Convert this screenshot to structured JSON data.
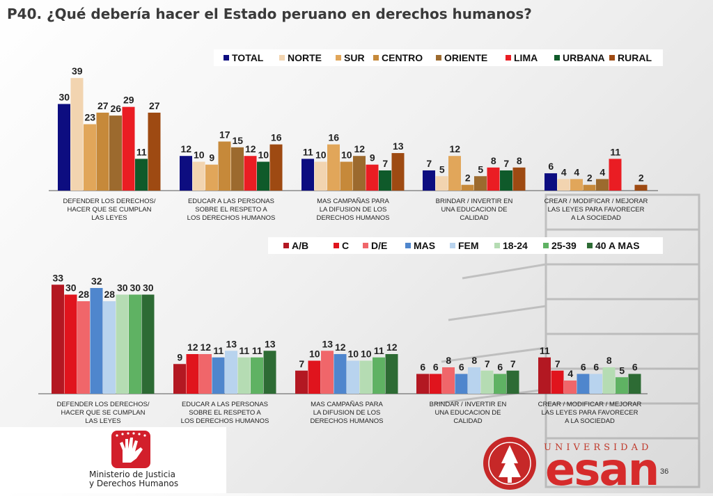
{
  "title": "P40. ¿Qué debería hacer el Estado peruano en derechos humanos?",
  "page_number": "36",
  "logos": {
    "ministerio": [
      "Ministerio de Justicia",
      "y Derechos Humanos"
    ],
    "university_word": "UNIVERSIDAD",
    "university_name": "esan"
  },
  "colors": {
    "TOTAL": "#0d0d80",
    "NORTE": "#f2d4b0",
    "SUR": "#e1a65a",
    "CENTRO": "#c6893a",
    "ORIENTE": "#9c6a2e",
    "LIMA": "#ea1d23",
    "URBANA": "#0f5a2a",
    "RURAL": "#9e4a12",
    "A/B": "#b31822",
    "C": "#e0141d",
    "D/E": "#f0666a",
    "MAS": "#4f86cd",
    "FEM": "#b8d3ee",
    "18-24": "#b5dcb3",
    "25-39": "#5fb263",
    "40 A MAS": "#2d6b34"
  },
  "chart_data": [
    {
      "type": "bar",
      "categories": [
        "DEFENDER LOS DERECHOS/|HACER QUE SE CUMPLAN|LAS LEYES",
        "EDUCAR A LAS PERSONAS|SOBRE EL RESPETO A|LOS DERECHOS HUMANOS",
        "MAS CAMPAÑAS PARA|LA DIFUSION DE LOS|DERECHOS HUMANOS",
        "BRINDAR / INVERTIR EN|UNA EDUCACION DE|CALIDAD",
        "CREAR / MODIFICAR / MEJORAR|LAS LEYES PARA FAVORECER|A LA SOCIEDAD"
      ],
      "series": [
        {
          "name": "TOTAL",
          "values": [
            30,
            12,
            11,
            7,
            6
          ]
        },
        {
          "name": "NORTE",
          "values": [
            39,
            10,
            10,
            5,
            4
          ]
        },
        {
          "name": "SUR",
          "values": [
            23,
            9,
            16,
            12,
            4
          ]
        },
        {
          "name": "CENTRO",
          "values": [
            27,
            17,
            10,
            2,
            2
          ]
        },
        {
          "name": "ORIENTE",
          "values": [
            26,
            15,
            12,
            5,
            4
          ]
        },
        {
          "name": "LIMA",
          "values": [
            29,
            12,
            9,
            8,
            11
          ]
        },
        {
          "name": "URBANA",
          "values": [
            11,
            10,
            7,
            7,
            null
          ]
        },
        {
          "name": "RURAL",
          "values": [
            27,
            16,
            13,
            8,
            2
          ]
        }
      ],
      "legend_position": "top-right",
      "grid": false
    },
    {
      "type": "bar",
      "categories": [
        "DEFENDER LOS DERECHOS/|HACER QUE SE CUMPLAN|LAS LEYES",
        "EDUCAR A LAS PERSONAS|SOBRE EL RESPETO A|LOS DERECHOS HUMANOS",
        "MAS CAMPAÑAS PARA|LA DIFUSION DE LOS|DERECHOS HUMANOS",
        "BRINDAR / INVERTIR EN|UNA EDUCACION DE|CALIDAD",
        "CREAR / MODIFICAR / MEJORAR|LAS LEYES PARA FAVORECER|A LA SOCIEDAD"
      ],
      "series": [
        {
          "name": "A/B",
          "values": [
            33,
            9,
            7,
            6,
            11
          ]
        },
        {
          "name": "C",
          "values": [
            30,
            12,
            10,
            6,
            7
          ]
        },
        {
          "name": "D/E",
          "values": [
            28,
            12,
            13,
            8,
            4
          ]
        },
        {
          "name": "MAS",
          "values": [
            32,
            11,
            12,
            6,
            6
          ]
        },
        {
          "name": "FEM",
          "values": [
            28,
            13,
            10,
            8,
            6
          ]
        },
        {
          "name": "18-24",
          "values": [
            30,
            11,
            10,
            7,
            8
          ]
        },
        {
          "name": "25-39",
          "values": [
            30,
            11,
            11,
            6,
            5
          ]
        },
        {
          "name": "40 A MAS",
          "values": [
            30,
            13,
            12,
            7,
            6
          ]
        }
      ],
      "legend_position": "top-right",
      "grid": false
    }
  ]
}
